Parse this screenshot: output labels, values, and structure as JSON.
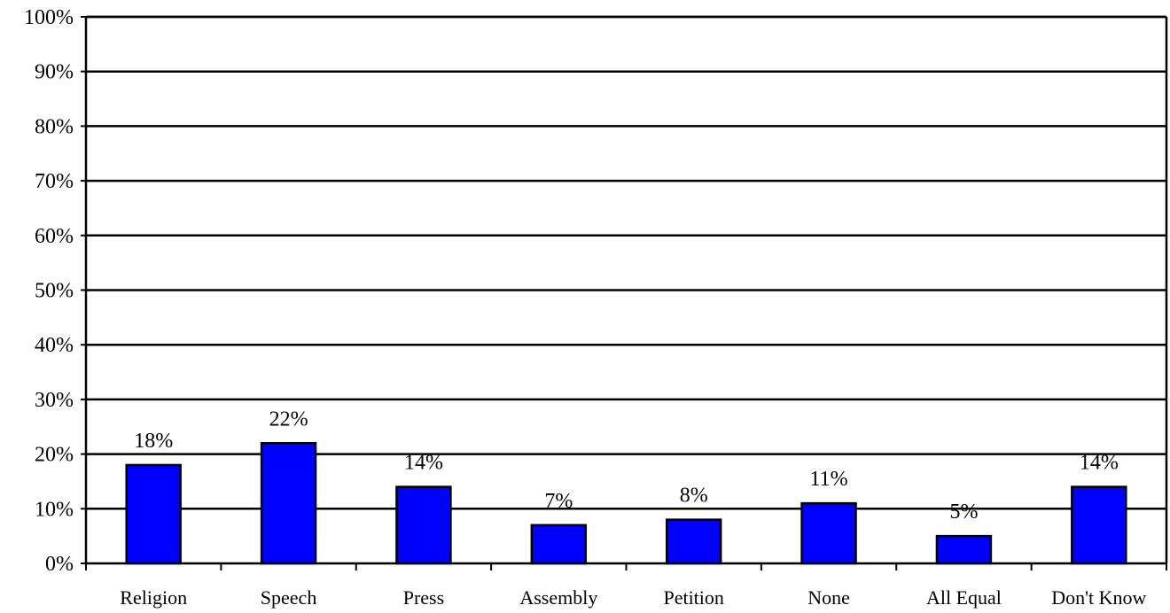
{
  "chart_data": {
    "type": "bar",
    "title": "",
    "xlabel": "",
    "ylabel": "",
    "categories": [
      "Religion",
      "Speech",
      "Press",
      "Assembly",
      "Petition",
      "None",
      "All Equal",
      "Don't Know"
    ],
    "values": [
      18,
      22,
      14,
      7,
      8,
      11,
      5,
      14
    ],
    "data_labels": [
      "18%",
      "22%",
      "14%",
      "7%",
      "8%",
      "11%",
      "5%",
      "14%"
    ],
    "ylim": [
      0,
      100
    ],
    "y_ticks": [
      0,
      10,
      20,
      30,
      40,
      50,
      60,
      70,
      80,
      90,
      100
    ],
    "y_tick_labels": [
      "0%",
      "10%",
      "20%",
      "30%",
      "40%",
      "50%",
      "60%",
      "70%",
      "80%",
      "90%",
      "100%"
    ],
    "grid": true,
    "legend": "none",
    "colors": {
      "bar_fill": "#0000ff",
      "bar_stroke": "#000000",
      "gridline": "#000000",
      "background": "#ffffff"
    }
  }
}
